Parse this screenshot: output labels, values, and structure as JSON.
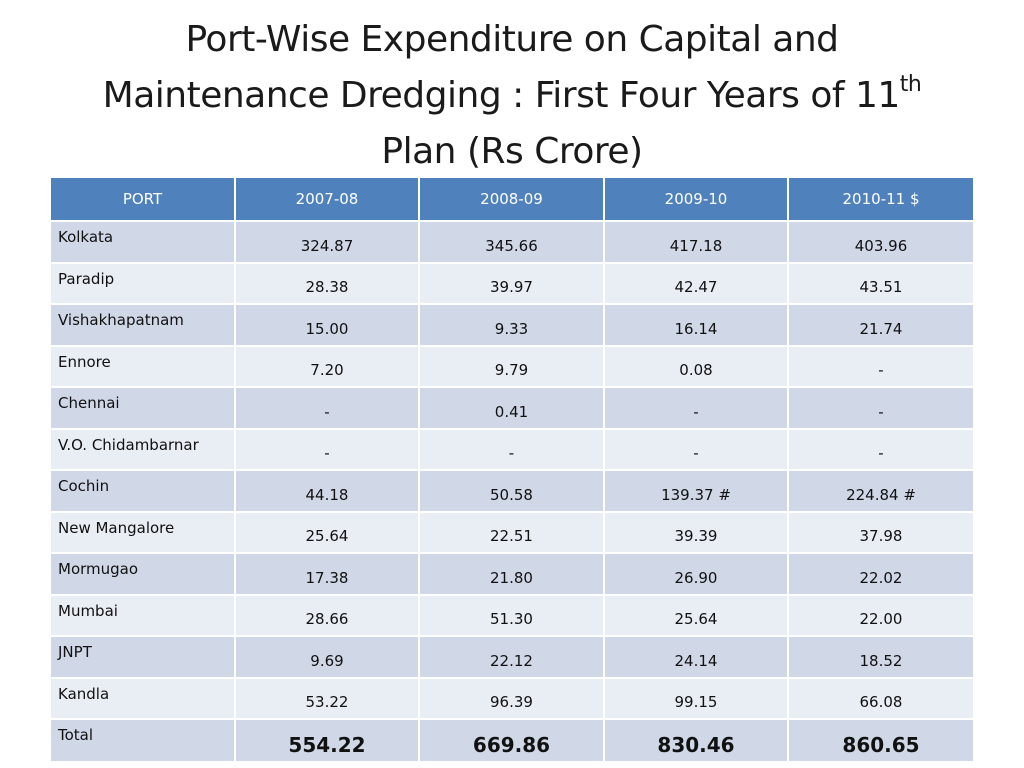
{
  "title": {
    "line1": "Port-Wise Expenditure on Capital and",
    "line2": "Maintenance Dredging : First Four Years of 11",
    "superscript": "th",
    "line3": "Plan (Rs Crore)"
  },
  "table": {
    "headers": [
      "PORT",
      "2007-08",
      "2008-09",
      "2009-10",
      "2010-11 $"
    ],
    "rows": [
      [
        "Kolkata",
        "324.87",
        "345.66",
        "417.18",
        "403.96"
      ],
      [
        "Paradip",
        "28.38",
        "39.97",
        "42.47",
        "43.51"
      ],
      [
        "Vishakhapatnam",
        "15.00",
        "9.33",
        "16.14",
        "21.74"
      ],
      [
        "Ennore",
        "7.20",
        "9.79",
        "0.08",
        "-"
      ],
      [
        "Chennai",
        "-",
        "0.41",
        "-",
        "-"
      ],
      [
        "V.O. Chidambarnar",
        "-",
        "-",
        "-",
        "-"
      ],
      [
        "Cochin",
        "44.18",
        "50.58",
        "139.37 #",
        "224.84 #"
      ],
      [
        "New Mangalore",
        "25.64",
        "22.51",
        "39.39",
        "37.98"
      ],
      [
        "Mormugao",
        "17.38",
        "21.80",
        "26.90",
        "22.02"
      ],
      [
        "Mumbai",
        "28.66",
        "51.30",
        "25.64",
        "22.00"
      ],
      [
        "JNPT",
        "9.69",
        "22.12",
        "24.14",
        "18.52"
      ],
      [
        "Kandla",
        "53.22",
        "96.39",
        "99.15",
        "66.08"
      ]
    ],
    "total": [
      "Total",
      "554.22",
      "669.86",
      "830.46",
      "860.65"
    ]
  },
  "colors": {
    "header_bg": "#4f81bd",
    "row_band_dark": "#d0d8e8",
    "row_band_light": "#e9edf4"
  }
}
